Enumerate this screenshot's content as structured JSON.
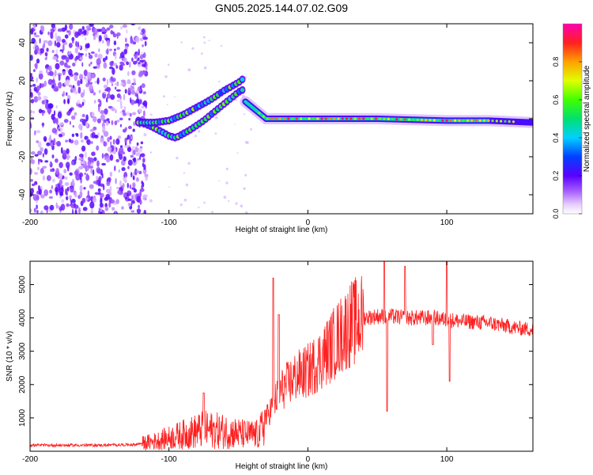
{
  "title": "GN05.2025.144.07.02.G09",
  "chart_data": [
    {
      "type": "heatmap",
      "xlabel": "Height of straight line (km)",
      "ylabel": "Frequency (Hz)",
      "xlim": [
        -200,
        162
      ],
      "ylim": [
        -50,
        50
      ],
      "xticks": [
        "-200",
        "-100",
        "0",
        "100"
      ],
      "yticks": [
        "40",
        "20",
        "0",
        "-20",
        "-40"
      ],
      "xtick_values": [
        -200,
        -100,
        0,
        100
      ],
      "ytick_values": [
        40,
        20,
        0,
        -20,
        -40
      ],
      "colorbar": {
        "label": "Normalized spectral amplitude",
        "ticks": [
          "0.0",
          "0.2",
          "0.4",
          "0.6",
          "0.8"
        ],
        "tick_values": [
          0.0,
          0.2,
          0.4,
          0.6,
          0.8
        ],
        "range": [
          0,
          1
        ]
      },
      "features": {
        "noise_region_x": [
          -200,
          -120
        ],
        "lower_branch": [
          [
            -122,
            -1
          ],
          [
            -110,
            -5
          ],
          [
            -100,
            -9
          ],
          [
            -95,
            -10
          ],
          [
            -85,
            -6
          ],
          [
            -75,
            -1
          ],
          [
            -65,
            5
          ],
          [
            -55,
            11
          ],
          [
            -50,
            14
          ],
          [
            -45,
            16
          ]
        ],
        "upper_branch": [
          [
            -122,
            -2
          ],
          [
            -110,
            -2
          ],
          [
            -100,
            -1
          ],
          [
            -90,
            2
          ],
          [
            -80,
            6
          ],
          [
            -70,
            10
          ],
          [
            -60,
            15
          ],
          [
            -50,
            19
          ],
          [
            -45,
            22
          ]
        ],
        "tail_after_peak": [
          [
            -45,
            9
          ],
          [
            -40,
            6
          ],
          [
            -35,
            3
          ],
          [
            -30,
            0
          ],
          [
            -20,
            0
          ],
          [
            0,
            0
          ],
          [
            50,
            0
          ],
          [
            100,
            -1
          ],
          [
            130,
            -1
          ],
          [
            162,
            -2
          ]
        ]
      }
    },
    {
      "type": "line",
      "xlabel": "Height of straight line (km)",
      "ylabel": "SNR (10 * v/v)",
      "xlim": [
        -200,
        162
      ],
      "ylim": [
        0,
        5700
      ],
      "xticks": [
        "-200",
        "-100",
        "0",
        "100"
      ],
      "yticks": [
        "1000",
        "2000",
        "3000",
        "4000",
        "5000"
      ],
      "xtick_values": [
        -200,
        -100,
        0,
        100
      ],
      "ytick_values": [
        1000,
        2000,
        3000,
        4000,
        5000
      ],
      "color": "#ff2020",
      "envelope": [
        [
          -200,
          180
        ],
        [
          -150,
          180
        ],
        [
          -125,
          200
        ],
        [
          -110,
          300
        ],
        [
          -100,
          400
        ],
        [
          -90,
          500
        ],
        [
          -75,
          650
        ],
        [
          -60,
          600
        ],
        [
          -45,
          500
        ],
        [
          -35,
          500
        ],
        [
          -30,
          1000
        ],
        [
          -25,
          1400
        ],
        [
          -20,
          1800
        ],
        [
          -10,
          2200
        ],
        [
          0,
          2400
        ],
        [
          10,
          2800
        ],
        [
          20,
          3300
        ],
        [
          30,
          3800
        ],
        [
          40,
          4000
        ],
        [
          50,
          4050
        ],
        [
          60,
          4050
        ],
        [
          70,
          4000
        ],
        [
          80,
          4000
        ],
        [
          90,
          4000
        ],
        [
          100,
          3950
        ],
        [
          110,
          3900
        ],
        [
          130,
          3850
        ],
        [
          150,
          3700
        ],
        [
          162,
          3650
        ]
      ],
      "spikes": [
        [
          -75,
          1750
        ],
        [
          -25,
          5200
        ],
        [
          -21,
          4100
        ],
        [
          55,
          5800
        ],
        [
          57,
          1200
        ],
        [
          70,
          5550
        ],
        [
          90,
          3200
        ],
        [
          100,
          5800
        ],
        [
          102,
          2100
        ]
      ]
    }
  ]
}
